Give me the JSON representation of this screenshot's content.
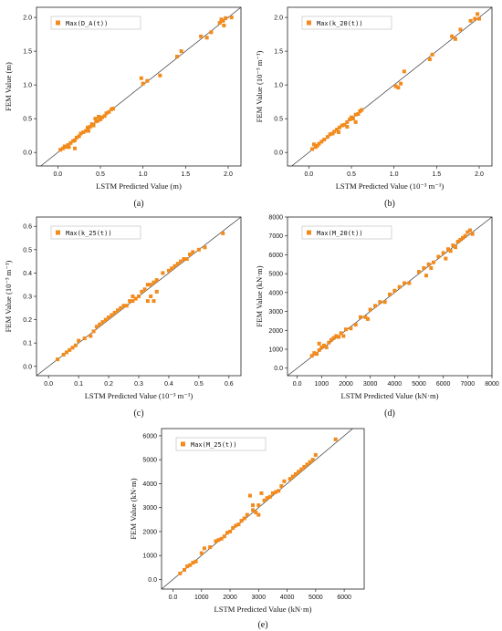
{
  "marker_color": "#f28a1c",
  "chart_data": [
    {
      "type": "scatter",
      "caption": "(a)",
      "xlabel": "LSTM Predicted Value (m)",
      "ylabel": "FEM Value (m)",
      "legend": "Max(D_A(t))",
      "legend_position": "top-left",
      "xlim": [
        -0.25,
        2.15
      ],
      "ylim": [
        -0.2,
        2.15
      ],
      "xticks": [
        0.0,
        0.5,
        1.0,
        1.5,
        2.0
      ],
      "yticks": [
        0.0,
        0.5,
        1.0,
        1.5,
        2.0
      ],
      "points": [
        [
          0.03,
          0.04
        ],
        [
          0.06,
          0.06
        ],
        [
          0.08,
          0.09
        ],
        [
          0.1,
          0.08
        ],
        [
          0.12,
          0.11
        ],
        [
          0.15,
          0.14
        ],
        [
          0.18,
          0.17
        ],
        [
          0.2,
          0.18
        ],
        [
          0.22,
          0.22
        ],
        [
          0.25,
          0.24
        ],
        [
          0.27,
          0.28
        ],
        [
          0.3,
          0.3
        ],
        [
          0.33,
          0.32
        ],
        [
          0.35,
          0.37
        ],
        [
          0.38,
          0.38
        ],
        [
          0.4,
          0.42
        ],
        [
          0.42,
          0.4
        ],
        [
          0.45,
          0.46
        ],
        [
          0.47,
          0.47
        ],
        [
          0.5,
          0.49
        ],
        [
          0.52,
          0.52
        ],
        [
          0.55,
          0.54
        ],
        [
          0.57,
          0.58
        ],
        [
          0.6,
          0.6
        ],
        [
          0.63,
          0.64
        ],
        [
          0.65,
          0.65
        ],
        [
          0.2,
          0.06
        ],
        [
          0.13,
          0.08
        ],
        [
          0.36,
          0.32
        ],
        [
          0.44,
          0.5
        ],
        [
          0.48,
          0.53
        ],
        [
          0.98,
          1.1
        ],
        [
          1.0,
          1.02
        ],
        [
          1.05,
          1.06
        ],
        [
          1.2,
          1.14
        ],
        [
          1.4,
          1.42
        ],
        [
          1.45,
          1.5
        ],
        [
          1.68,
          1.72
        ],
        [
          1.75,
          1.7
        ],
        [
          1.8,
          1.78
        ],
        [
          1.9,
          1.92
        ],
        [
          1.92,
          1.97
        ],
        [
          1.94,
          1.95
        ],
        [
          1.95,
          1.88
        ],
        [
          1.97,
          1.99
        ],
        [
          2.04,
          2.0
        ]
      ]
    },
    {
      "type": "scatter",
      "caption": "(b)",
      "xlabel": "LSTM Predicted Value (10⁻³ m⁻¹)",
      "ylabel": "FEM Value (10⁻³ m⁻¹)",
      "legend": "Max(k_20(t))",
      "legend_position": "top-left",
      "xlim": [
        -0.25,
        2.15
      ],
      "ylim": [
        -0.2,
        2.15
      ],
      "xticks": [
        0.0,
        0.5,
        1.0,
        1.5,
        2.0
      ],
      "yticks": [
        0.0,
        0.5,
        1.0,
        1.5,
        2.0
      ],
      "points": [
        [
          0.04,
          0.05
        ],
        [
          0.06,
          0.12
        ],
        [
          0.08,
          0.08
        ],
        [
          0.1,
          0.1
        ],
        [
          0.12,
          0.13
        ],
        [
          0.15,
          0.16
        ],
        [
          0.18,
          0.19
        ],
        [
          0.22,
          0.23
        ],
        [
          0.25,
          0.27
        ],
        [
          0.28,
          0.28
        ],
        [
          0.3,
          0.31
        ],
        [
          0.33,
          0.34
        ],
        [
          0.36,
          0.37
        ],
        [
          0.39,
          0.4
        ],
        [
          0.42,
          0.41
        ],
        [
          0.45,
          0.45
        ],
        [
          0.48,
          0.49
        ],
        [
          0.5,
          0.52
        ],
        [
          0.52,
          0.5
        ],
        [
          0.55,
          0.56
        ],
        [
          0.58,
          0.57
        ],
        [
          0.6,
          0.61
        ],
        [
          0.62,
          0.63
        ],
        [
          0.45,
          0.38
        ],
        [
          0.35,
          0.3
        ],
        [
          0.55,
          0.45
        ],
        [
          1.02,
          0.98
        ],
        [
          1.05,
          0.96
        ],
        [
          1.08,
          1.02
        ],
        [
          1.12,
          1.2
        ],
        [
          1.42,
          1.38
        ],
        [
          1.45,
          1.45
        ],
        [
          1.68,
          1.72
        ],
        [
          1.72,
          1.68
        ],
        [
          1.78,
          1.82
        ],
        [
          1.9,
          1.95
        ],
        [
          1.95,
          1.98
        ],
        [
          1.98,
          2.05
        ],
        [
          2.0,
          1.98
        ]
      ]
    },
    {
      "type": "scatter",
      "caption": "(c)",
      "xlabel": "LSTM Predicted Value (10⁻³ m⁻¹)",
      "ylabel": "FEM Value (10⁻³ m⁻¹)",
      "legend": "Max(k_25(t))",
      "legend_position": "top-left",
      "xlim": [
        -0.04,
        0.64
      ],
      "ylim": [
        -0.04,
        0.64
      ],
      "xticks": [
        0.0,
        0.1,
        0.2,
        0.3,
        0.4,
        0.5,
        0.6
      ],
      "yticks": [
        0.0,
        0.1,
        0.2,
        0.3,
        0.4,
        0.5,
        0.6
      ],
      "points": [
        [
          0.03,
          0.03
        ],
        [
          0.05,
          0.05
        ],
        [
          0.06,
          0.06
        ],
        [
          0.07,
          0.07
        ],
        [
          0.08,
          0.08
        ],
        [
          0.09,
          0.09
        ],
        [
          0.1,
          0.11
        ],
        [
          0.12,
          0.12
        ],
        [
          0.14,
          0.13
        ],
        [
          0.15,
          0.15
        ],
        [
          0.16,
          0.17
        ],
        [
          0.17,
          0.18
        ],
        [
          0.18,
          0.19
        ],
        [
          0.19,
          0.2
        ],
        [
          0.2,
          0.21
        ],
        [
          0.21,
          0.22
        ],
        [
          0.22,
          0.23
        ],
        [
          0.23,
          0.24
        ],
        [
          0.24,
          0.25
        ],
        [
          0.25,
          0.26
        ],
        [
          0.26,
          0.26
        ],
        [
          0.27,
          0.28
        ],
        [
          0.28,
          0.3
        ],
        [
          0.29,
          0.29
        ],
        [
          0.3,
          0.3
        ],
        [
          0.31,
          0.32
        ],
        [
          0.32,
          0.33
        ],
        [
          0.33,
          0.35
        ],
        [
          0.34,
          0.35
        ],
        [
          0.35,
          0.36
        ],
        [
          0.36,
          0.37
        ],
        [
          0.34,
          0.3
        ],
        [
          0.33,
          0.28
        ],
        [
          0.35,
          0.28
        ],
        [
          0.36,
          0.32
        ],
        [
          0.38,
          0.4
        ],
        [
          0.4,
          0.41
        ],
        [
          0.41,
          0.42
        ],
        [
          0.42,
          0.43
        ],
        [
          0.43,
          0.44
        ],
        [
          0.44,
          0.45
        ],
        [
          0.45,
          0.46
        ],
        [
          0.46,
          0.46
        ],
        [
          0.47,
          0.48
        ],
        [
          0.48,
          0.49
        ],
        [
          0.5,
          0.5
        ],
        [
          0.52,
          0.51
        ],
        [
          0.58,
          0.57
        ],
        [
          0.28,
          0.28
        ]
      ]
    },
    {
      "type": "scatter",
      "caption": "(d)",
      "xlabel": "LSTM Predicted Value (kN·m)",
      "ylabel": "FEM Value (kN·m)",
      "legend": "Max(M_20(t))",
      "legend_position": "top-left",
      "xlim": [
        -400,
        8000
      ],
      "ylim": [
        -400,
        8000
      ],
      "xticks": [
        0,
        1000,
        2000,
        3000,
        4000,
        5000,
        6000,
        7000,
        8000
      ],
      "yticks": [
        0,
        1000,
        2000,
        3000,
        4000,
        5000,
        6000,
        7000,
        8000
      ],
      "points": [
        [
          600,
          650
        ],
        [
          700,
          800
        ],
        [
          800,
          750
        ],
        [
          900,
          950
        ],
        [
          1000,
          1100
        ],
        [
          1100,
          1200
        ],
        [
          1200,
          1100
        ],
        [
          1300,
          1350
        ],
        [
          1400,
          1500
        ],
        [
          1500,
          1600
        ],
        [
          1600,
          1700
        ],
        [
          1700,
          1650
        ],
        [
          1800,
          1850
        ],
        [
          2000,
          2050
        ],
        [
          2200,
          2100
        ],
        [
          2400,
          2300
        ],
        [
          2600,
          2700
        ],
        [
          2800,
          2700
        ],
        [
          3000,
          3100
        ],
        [
          3200,
          3300
        ],
        [
          3400,
          3500
        ],
        [
          3600,
          3500
        ],
        [
          3800,
          3900
        ],
        [
          4000,
          4100
        ],
        [
          4200,
          4300
        ],
        [
          4400,
          4500
        ],
        [
          4600,
          4500
        ],
        [
          5000,
          5100
        ],
        [
          5200,
          5300
        ],
        [
          5400,
          5500
        ],
        [
          5600,
          5600
        ],
        [
          5800,
          5900
        ],
        [
          6000,
          6100
        ],
        [
          6200,
          6300
        ],
        [
          6300,
          6200
        ],
        [
          6400,
          6500
        ],
        [
          6500,
          6400
        ],
        [
          6600,
          6700
        ],
        [
          6700,
          6800
        ],
        [
          6800,
          6900
        ],
        [
          6900,
          7000
        ],
        [
          7000,
          7200
        ],
        [
          7100,
          7300
        ],
        [
          7200,
          7100
        ],
        [
          5300,
          4900
        ],
        [
          5500,
          5300
        ],
        [
          6100,
          5800
        ],
        [
          900,
          1300
        ],
        [
          1900,
          1700
        ],
        [
          2900,
          2600
        ]
      ]
    },
    {
      "type": "scatter",
      "caption": "(e)",
      "xlabel": "LSTM Predicted Value (kN·m)",
      "ylabel": "FEM Value (kN·m)",
      "legend": "Max(M_25(t))",
      "legend_position": "top-left",
      "xlim": [
        -400,
        6700
      ],
      "ylim": [
        -400,
        6300
      ],
      "xticks": [
        0,
        1000,
        2000,
        3000,
        4000,
        5000,
        6000
      ],
      "yticks": [
        0,
        1000,
        2000,
        3000,
        4000,
        5000,
        6000
      ],
      "points": [
        [
          250,
          250
        ],
        [
          400,
          400
        ],
        [
          500,
          550
        ],
        [
          600,
          600
        ],
        [
          700,
          700
        ],
        [
          800,
          750
        ],
        [
          1000,
          1100
        ],
        [
          1100,
          1300
        ],
        [
          1300,
          1350
        ],
        [
          1500,
          1600
        ],
        [
          1600,
          1650
        ],
        [
          1700,
          1700
        ],
        [
          1800,
          1800
        ],
        [
          1900,
          1950
        ],
        [
          2000,
          2000
        ],
        [
          2100,
          2150
        ],
        [
          2200,
          2250
        ],
        [
          2300,
          2300
        ],
        [
          2400,
          2450
        ],
        [
          2500,
          2550
        ],
        [
          2600,
          2700
        ],
        [
          2700,
          3500
        ],
        [
          2800,
          2900
        ],
        [
          2900,
          2800
        ],
        [
          3000,
          3100
        ],
        [
          3100,
          3600
        ],
        [
          3200,
          3300
        ],
        [
          3300,
          3400
        ],
        [
          3400,
          3450
        ],
        [
          3500,
          3600
        ],
        [
          3600,
          3650
        ],
        [
          3700,
          3700
        ],
        [
          3800,
          3900
        ],
        [
          3900,
          4100
        ],
        [
          4100,
          4200
        ],
        [
          4200,
          4300
        ],
        [
          4300,
          4400
        ],
        [
          4400,
          4500
        ],
        [
          4500,
          4600
        ],
        [
          4600,
          4700
        ],
        [
          4700,
          4800
        ],
        [
          4800,
          4900
        ],
        [
          4900,
          5000
        ],
        [
          5000,
          5200
        ],
        [
          5700,
          5850
        ],
        [
          3000,
          2700
        ],
        [
          2800,
          3100
        ]
      ]
    }
  ]
}
